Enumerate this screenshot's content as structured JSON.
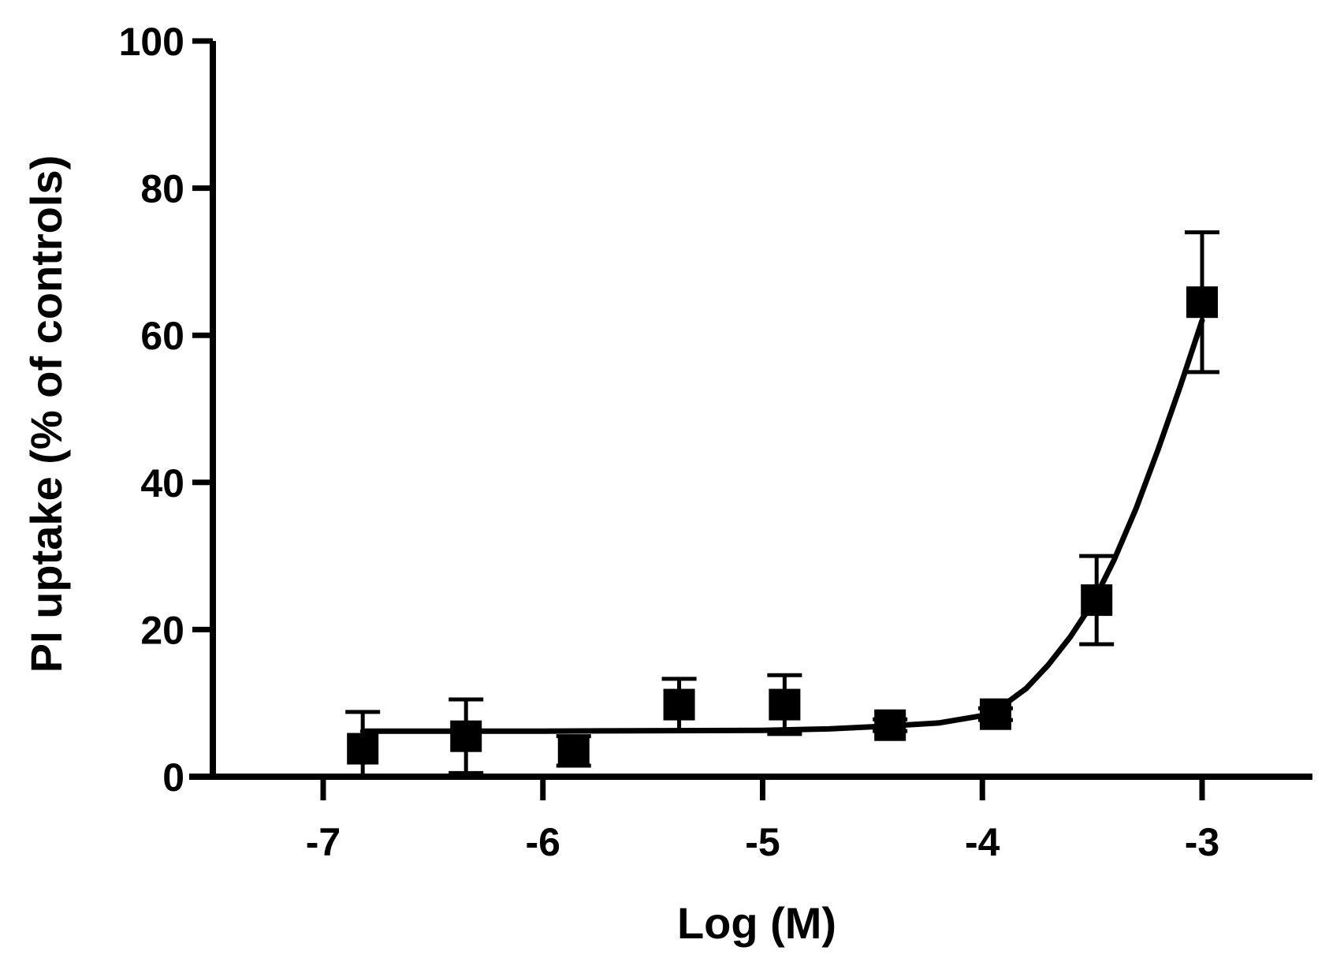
{
  "chart_data": {
    "type": "scatter",
    "title": "",
    "xlabel": "Log (M)",
    "ylabel": "PI uptake (% of controls)",
    "xlim": [
      -7.5,
      -2.5
    ],
    "ylim": [
      0,
      100
    ],
    "xticks": [
      -7,
      -6,
      -5,
      -4,
      -3
    ],
    "xtick_labels": [
      "-7",
      "-6",
      "-5",
      "-4",
      "-3"
    ],
    "yticks": [
      0,
      20,
      40,
      60,
      80,
      100
    ],
    "ytick_labels": [
      "0",
      "20",
      "40",
      "60",
      "80",
      "100"
    ],
    "grid": false,
    "legend": "none",
    "color": "#000000",
    "points": [
      {
        "x": -6.82,
        "y": 3.8,
        "err": 5.0
      },
      {
        "x": -6.35,
        "y": 5.5,
        "err": 5.0
      },
      {
        "x": -5.86,
        "y": 3.5,
        "err": 2.0
      },
      {
        "x": -5.38,
        "y": 9.8,
        "err": 3.5
      },
      {
        "x": -4.9,
        "y": 9.8,
        "err": 4.0
      },
      {
        "x": -4.42,
        "y": 7.0,
        "err": 0.8
      },
      {
        "x": -3.94,
        "y": 8.5,
        "err": 0.8
      },
      {
        "x": -3.48,
        "y": 24.0,
        "err": 6.0
      },
      {
        "x": -3.0,
        "y": 64.5,
        "err": 9.5
      }
    ],
    "fit_curve": {
      "x": [
        -6.82,
        -6.0,
        -5.0,
        -4.7,
        -4.42,
        -4.2,
        -4.0,
        -3.9,
        -3.8,
        -3.7,
        -3.6,
        -3.5,
        -3.4,
        -3.3,
        -3.2,
        -3.1,
        -3.0
      ],
      "y": [
        6.2,
        6.2,
        6.3,
        6.5,
        6.9,
        7.3,
        8.3,
        9.8,
        12.0,
        15.2,
        19.0,
        23.5,
        29.5,
        36.5,
        44.5,
        53.0,
        62.0
      ]
    }
  }
}
